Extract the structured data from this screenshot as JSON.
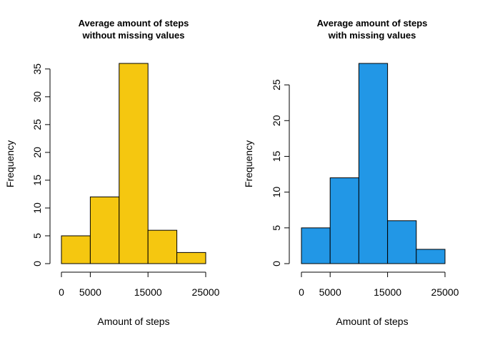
{
  "chart_data": [
    {
      "type": "bar",
      "title_lines": [
        "Average amount of steps",
        "without missing values"
      ],
      "xlabel": "Amount of steps",
      "ylabel": "Frequency",
      "bin_edges": [
        0,
        5000,
        10000,
        15000,
        20000,
        25000
      ],
      "values": [
        5,
        12,
        36,
        6,
        2
      ],
      "xlim": [
        0,
        25000
      ],
      "xticks": [
        0,
        5000,
        15000,
        25000
      ],
      "xtick_labels": [
        "0",
        "5000",
        "15000",
        "25000"
      ],
      "ylim": [
        0,
        36
      ],
      "yticks": [
        0,
        5,
        10,
        15,
        20,
        25,
        30,
        35
      ],
      "ytick_labels": [
        "0",
        "5",
        "10",
        "15",
        "20",
        "25",
        "30",
        "35"
      ],
      "color": "#F5C710",
      "grid": false
    },
    {
      "type": "bar",
      "title_lines": [
        "Average amount of steps",
        "with missing values"
      ],
      "xlabel": "Amount of steps",
      "ylabel": "Frequency",
      "bin_edges": [
        0,
        5000,
        10000,
        15000,
        20000,
        25000
      ],
      "values": [
        5,
        12,
        28,
        6,
        2
      ],
      "xlim": [
        0,
        25000
      ],
      "xticks": [
        0,
        5000,
        15000,
        25000
      ],
      "xtick_labels": [
        "0",
        "5000",
        "15000",
        "25000"
      ],
      "ylim": [
        0,
        28
      ],
      "yticks": [
        0,
        5,
        10,
        15,
        20,
        25
      ],
      "ytick_labels": [
        "0",
        "5",
        "10",
        "15",
        "20",
        "25"
      ],
      "color": "#2297E6",
      "grid": false
    }
  ]
}
